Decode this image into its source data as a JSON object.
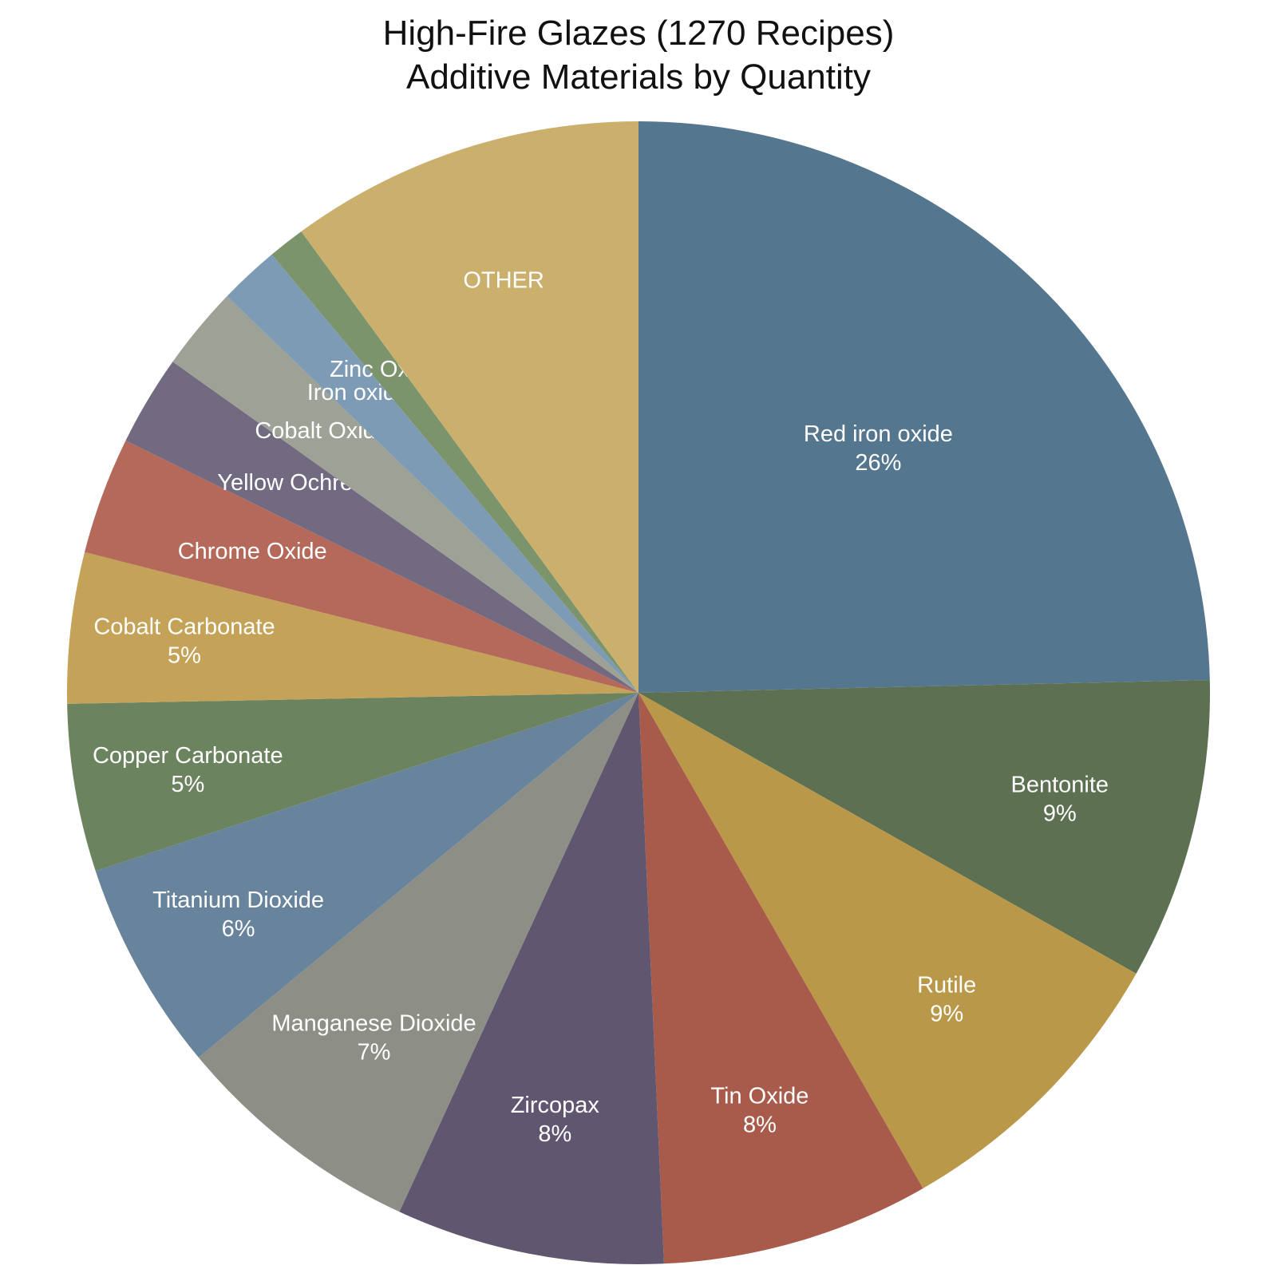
{
  "chart_data": {
    "type": "pie",
    "title": "High-Fire Glazes (1270 Recipes)",
    "subtitle": "Additive Materials by Quantity",
    "start_angle": "12 o'clock",
    "direction": "clockwise",
    "slices": [
      {
        "label": "Red iron oxide",
        "value": 26.0,
        "value_label": "26%",
        "color": "#55768f"
      },
      {
        "label": "Bentonite",
        "value": 9.0,
        "value_label": "9%",
        "color": "#5d7152"
      },
      {
        "label": "Rutile",
        "value": 9.0,
        "value_label": "9%",
        "color": "#b99849"
      },
      {
        "label": "Tin Oxide",
        "value": 8.0,
        "value_label": "8%",
        "color": "#a95b4b"
      },
      {
        "label": "Zircopax",
        "value": 8.0,
        "value_label": "8%",
        "color": "#605670"
      },
      {
        "label": "Manganese Dioxide",
        "value": 7.5,
        "value_label": "7%",
        "color": "#8d8f86"
      },
      {
        "label": "Titanium Dioxide",
        "value": 6.3,
        "value_label": "6%",
        "color": "#68839c"
      },
      {
        "label": "Copper Carbonate",
        "value": 5.0,
        "value_label": "5%",
        "color": "#6c835f"
      },
      {
        "label": "Cobalt Carbonate",
        "value": 4.5,
        "value_label": "5%",
        "color": "#c4a257"
      },
      {
        "label": "Chrome Oxide",
        "value": 3.5,
        "value_label": "",
        "color": "#b5695a"
      },
      {
        "label": "Yellow Ochre",
        "value": 2.7,
        "value_label": "",
        "color": "#726a80"
      },
      {
        "label": "Cobalt Oxide",
        "value": 2.5,
        "value_label": "",
        "color": "#9da196"
      },
      {
        "label": "Iron oxide",
        "value": 1.8,
        "value_label": "",
        "color": "#7d9bb4"
      },
      {
        "label": "Zinc Oxide",
        "value": 1.1,
        "value_label": "",
        "color": "#7c946b"
      },
      {
        "label": "OTHER",
        "value": 10.6,
        "value_label": "",
        "color": "#cbb06d"
      }
    ]
  }
}
